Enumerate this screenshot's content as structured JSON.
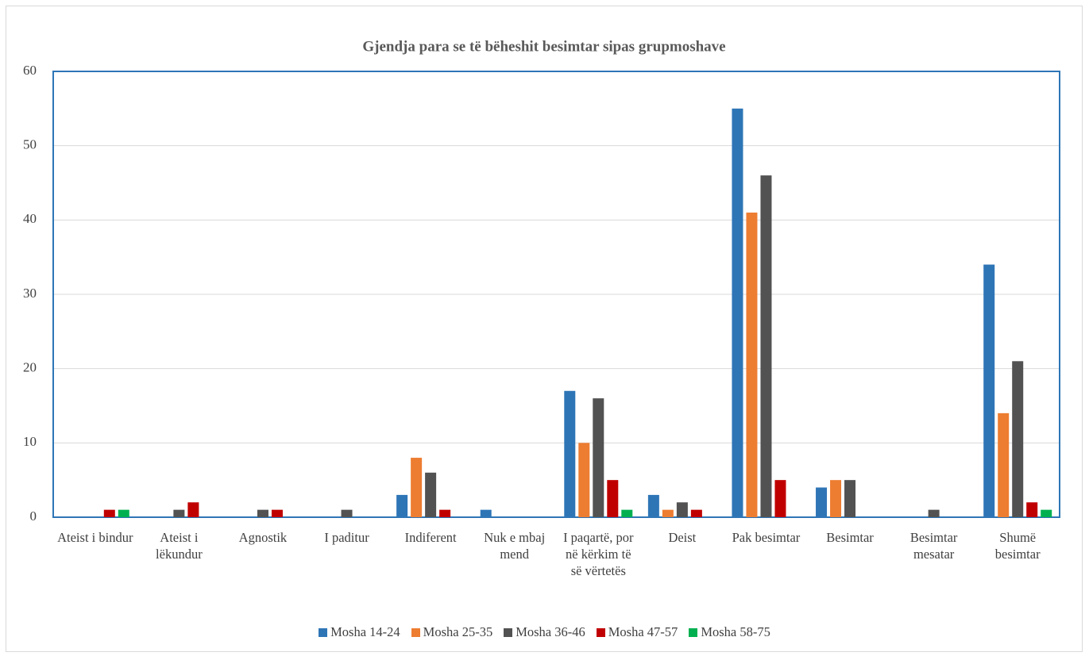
{
  "chart_data": {
    "type": "bar",
    "title": "Gjendja para se të bëheshit besimtar sipas grupmoshave",
    "categories": [
      "Ateist i bindur",
      "Ateist i lëkundur",
      "Agnostik",
      "I paditur",
      "Indiferent",
      "Nuk e mbaj mend",
      "I paqartë, por në kërkim të së vërtetës",
      "Deist",
      "Pak besimtar",
      "Besimtar",
      "Besimtar mesatar",
      "Shumë besimtar"
    ],
    "series": [
      {
        "name": "Mosha 14-24",
        "color": "#2e75b6",
        "values": [
          0,
          0,
          0,
          0,
          3,
          1,
          17,
          3,
          55,
          4,
          0,
          34
        ]
      },
      {
        "name": "Mosha 25-35",
        "color": "#ed7d31",
        "values": [
          0,
          0,
          0,
          0,
          8,
          0,
          10,
          1,
          41,
          5,
          0,
          14
        ]
      },
      {
        "name": "Mosha 36-46",
        "color": "#525252",
        "values": [
          0,
          1,
          1,
          1,
          6,
          0,
          16,
          2,
          46,
          5,
          1,
          21
        ]
      },
      {
        "name": "Mosha 47-57",
        "color": "#c00000",
        "values": [
          1,
          2,
          1,
          0,
          1,
          0,
          5,
          1,
          5,
          0,
          0,
          2
        ]
      },
      {
        "name": "Mosha 58-75",
        "color": "#00b050",
        "values": [
          1,
          0,
          0,
          0,
          0,
          0,
          1,
          0,
          0,
          0,
          0,
          1
        ]
      }
    ],
    "ylim": [
      0,
      60
    ],
    "yticks": [
      0,
      10,
      20,
      30,
      40,
      50,
      60
    ],
    "grid": true,
    "legend": "bottom"
  }
}
